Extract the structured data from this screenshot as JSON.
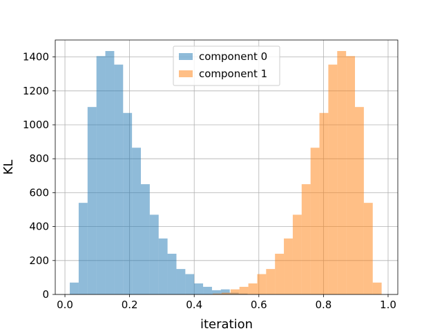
{
  "chart_data": {
    "type": "bar",
    "subtype": "histogram",
    "xlabel": "iteration",
    "ylabel": "KL",
    "xlim": [
      -0.03,
      1.03
    ],
    "ylim": [
      0,
      1500
    ],
    "xticks": [
      0.0,
      0.2,
      0.4,
      0.6,
      0.8,
      1.0
    ],
    "xtick_labels": [
      "0.0",
      "0.2",
      "0.4",
      "0.6",
      "0.8",
      "1.0"
    ],
    "yticks": [
      0,
      200,
      400,
      600,
      800,
      1000,
      1200,
      1400
    ],
    "ytick_labels": [
      "0",
      "200",
      "400",
      "600",
      "800",
      "1000",
      "1200",
      "1400"
    ],
    "grid": true,
    "legend_position": "top-center",
    "series": [
      {
        "name": "component 0",
        "color": "#1f77b4",
        "alpha": 0.5,
        "bins": [
          [
            0.015,
            0.0425,
            70
          ],
          [
            0.0425,
            0.07,
            540
          ],
          [
            0.07,
            0.0975,
            1105
          ],
          [
            0.0975,
            0.125,
            1405
          ],
          [
            0.125,
            0.1525,
            1435
          ],
          [
            0.1525,
            0.18,
            1355
          ],
          [
            0.18,
            0.2075,
            1070
          ],
          [
            0.2075,
            0.235,
            865
          ],
          [
            0.235,
            0.2625,
            650
          ],
          [
            0.2625,
            0.29,
            470
          ],
          [
            0.29,
            0.3175,
            330
          ],
          [
            0.3175,
            0.345,
            240
          ],
          [
            0.345,
            0.3725,
            150
          ],
          [
            0.3725,
            0.4,
            120
          ],
          [
            0.4,
            0.4275,
            65
          ],
          [
            0.4275,
            0.455,
            45
          ],
          [
            0.455,
            0.4825,
            25
          ],
          [
            0.4825,
            0.51,
            30
          ],
          [
            0.51,
            0.5375,
            10
          ],
          [
            0.5375,
            0.565,
            5
          ]
        ]
      },
      {
        "name": "component 1",
        "color": "#ff7f0e",
        "alpha": 0.5,
        "bins": [
          [
            0.4575,
            0.485,
            5
          ],
          [
            0.485,
            0.5125,
            10
          ],
          [
            0.5125,
            0.54,
            30
          ],
          [
            0.54,
            0.5675,
            45
          ],
          [
            0.5675,
            0.595,
            65
          ],
          [
            0.595,
            0.6225,
            120
          ],
          [
            0.6225,
            0.65,
            150
          ],
          [
            0.65,
            0.6775,
            240
          ],
          [
            0.6775,
            0.705,
            330
          ],
          [
            0.705,
            0.7325,
            470
          ],
          [
            0.7325,
            0.76,
            650
          ],
          [
            0.76,
            0.7875,
            865
          ],
          [
            0.7875,
            0.815,
            1070
          ],
          [
            0.815,
            0.8425,
            1355
          ],
          [
            0.8425,
            0.87,
            1435
          ],
          [
            0.87,
            0.8975,
            1405
          ],
          [
            0.8975,
            0.925,
            1105
          ],
          [
            0.925,
            0.9525,
            540
          ],
          [
            0.9525,
            0.98,
            70
          ]
        ]
      }
    ]
  }
}
